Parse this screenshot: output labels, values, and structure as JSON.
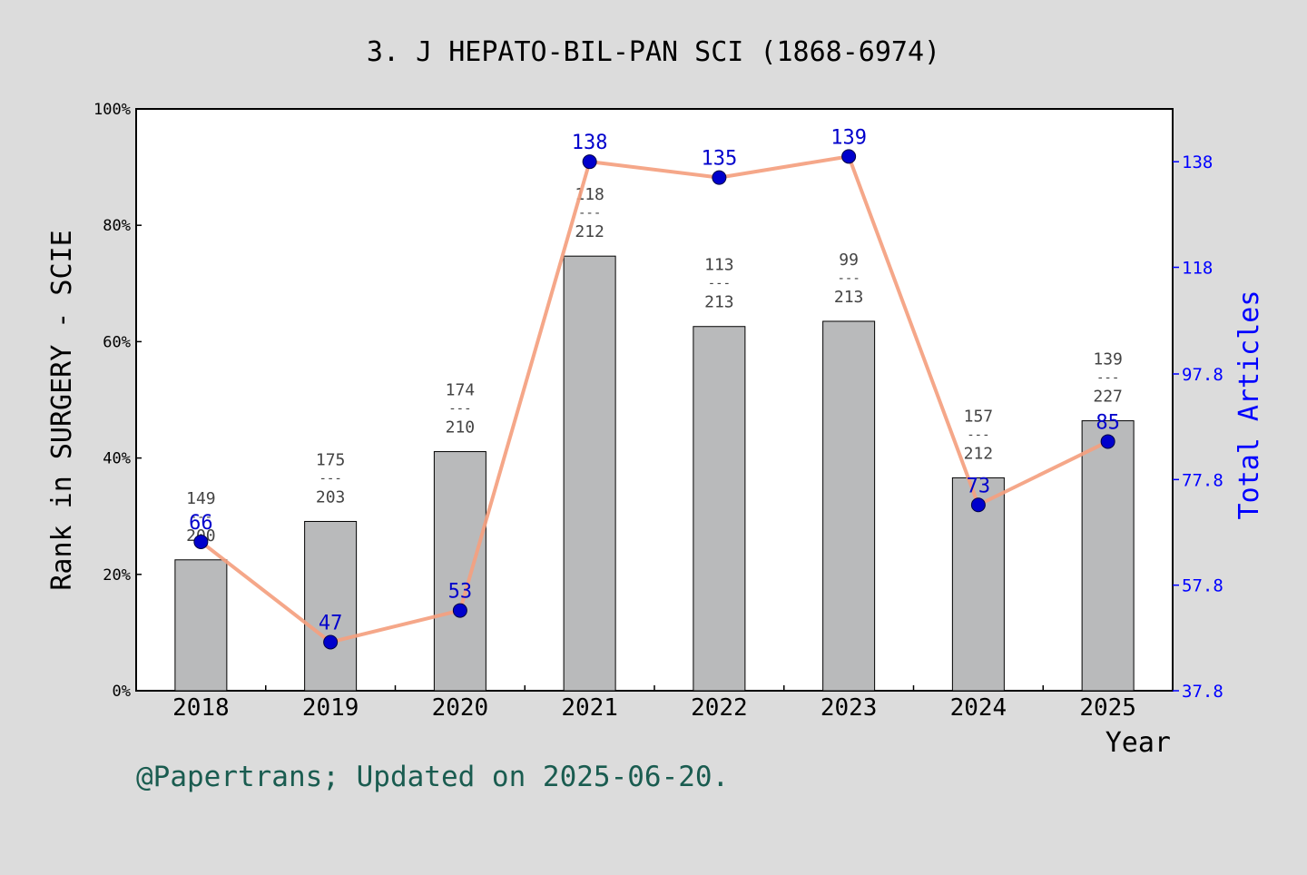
{
  "chart_data": {
    "type": "bar",
    "title": "3. J HEPATO-BIL-PAN SCI (1868-6974)",
    "xlabel": "Year",
    "ylabel": "Rank in SURGERY - SCIE",
    "y2label": "Total Articles",
    "categories": [
      "2018",
      "2019",
      "2020",
      "2021",
      "2022",
      "2023",
      "2024",
      "2025"
    ],
    "series": [
      {
        "axis": "left",
        "kind": "bar",
        "values": [
          22.5,
          29.1,
          41.1,
          74.7,
          62.6,
          63.5,
          36.6,
          46.4
        ],
        "rank": [
          "149",
          "175",
          "174",
          "118",
          "113",
          "99",
          "157",
          "139"
        ],
        "total": [
          "200",
          "203",
          "210",
          "212",
          "213",
          "213",
          "212",
          "227"
        ],
        "color": "#b9babb"
      },
      {
        "axis": "right",
        "kind": "line",
        "values": [
          66,
          47,
          53,
          138,
          135,
          139,
          73,
          85
        ],
        "labels": [
          "66",
          "47",
          "53",
          "138",
          "135",
          "139",
          "73",
          "85"
        ],
        "line_color": "#f4a07f",
        "marker_color": "#0000cc"
      }
    ],
    "ylim": [
      0,
      100
    ],
    "yticks": [
      "0%",
      "20%",
      "40%",
      "60%",
      "80%",
      "100%"
    ],
    "y2lim": [
      37.8,
      148
    ],
    "y2ticks": [
      "37.8",
      "57.8",
      "77.8",
      "97.8",
      "118",
      "138"
    ],
    "fraction_separator": "---",
    "colors": {
      "background": "#dcdcdc",
      "plot": "#ffffff",
      "right_axis": "#0000ff",
      "footer": "#1a5c50",
      "label_text": "#444444"
    }
  },
  "footer": "@Papertrans; Updated on 2025-06-20."
}
